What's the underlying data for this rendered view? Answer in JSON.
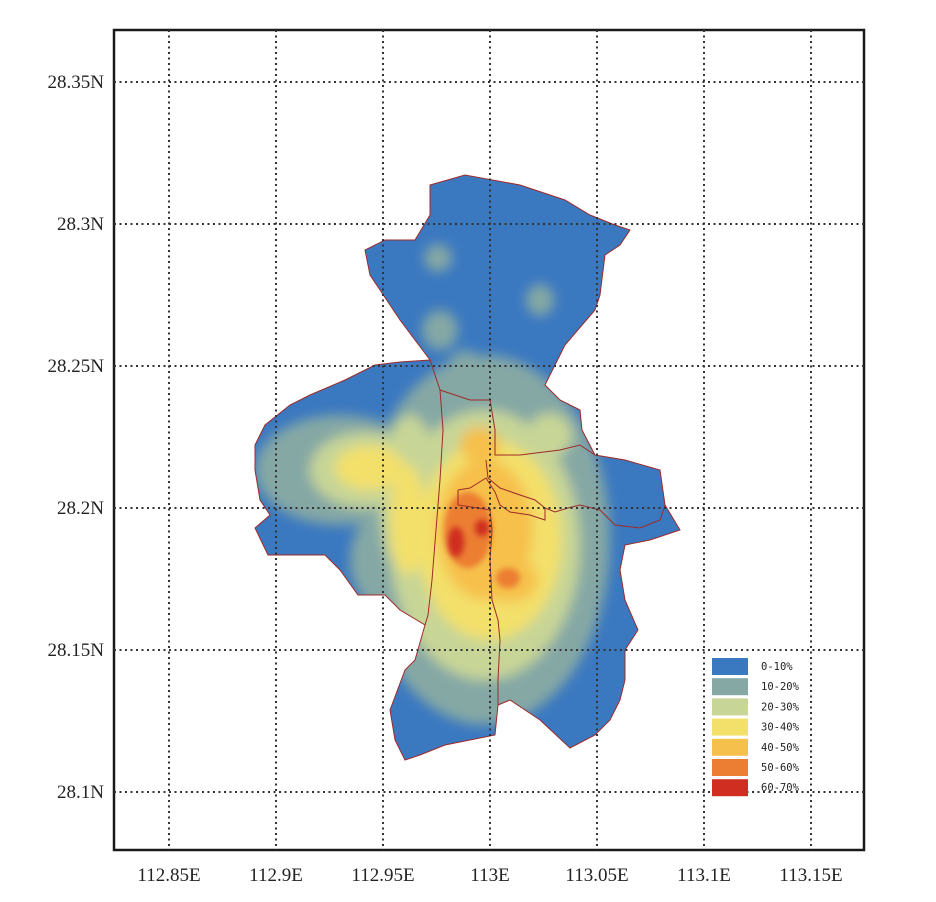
{
  "map": {
    "x_axis": {
      "ticks": [
        {
          "value": 112.85,
          "label": "112.85E"
        },
        {
          "value": 112.9,
          "label": "112.9E"
        },
        {
          "value": 112.95,
          "label": "112.95E"
        },
        {
          "value": 113.0,
          "label": "113E"
        },
        {
          "value": 113.05,
          "label": "113.05E"
        },
        {
          "value": 113.1,
          "label": "113.1E"
        },
        {
          "value": 113.15,
          "label": "113.15E"
        }
      ],
      "range": [
        112.82,
        113.17
      ]
    },
    "y_axis": {
      "ticks": [
        {
          "value": 28.35,
          "label": "28.35N"
        },
        {
          "value": 28.3,
          "label": "28.3N"
        },
        {
          "value": 28.25,
          "label": "28.25N"
        },
        {
          "value": 28.2,
          "label": "28.2N"
        },
        {
          "value": 28.15,
          "label": "28.15N"
        },
        {
          "value": 28.1,
          "label": "28.1N"
        }
      ],
      "range": [
        28.08,
        28.37
      ]
    },
    "grid": true,
    "grid_style": "dotted",
    "legend_position": "bottom-right",
    "legend": [
      {
        "label": "0-10%",
        "color": "#3a78c0"
      },
      {
        "label": "10-20%",
        "color": "#85a8a5"
      },
      {
        "label": "20-30%",
        "color": "#c7d596"
      },
      {
        "label": "30-40%",
        "color": "#f3e06a"
      },
      {
        "label": "40-50%",
        "color": "#f6c04c"
      },
      {
        "label": "50-60%",
        "color": "#ec7e33"
      },
      {
        "label": "60-70%",
        "color": "#d12e22"
      }
    ],
    "boundary_color": "#9e2a2a"
  }
}
